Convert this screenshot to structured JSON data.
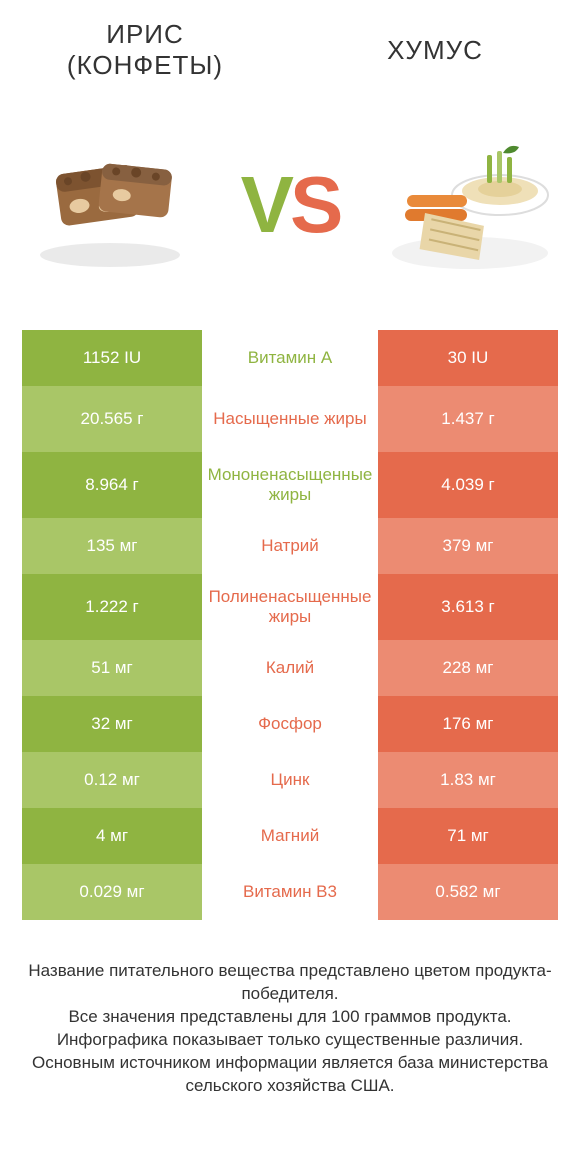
{
  "colors": {
    "green_dark": "#8fb441",
    "green_light": "#a9c667",
    "orange_dark": "#e56a4c",
    "orange_light": "#ec8b72",
    "mid_green_text": "#8fb441",
    "mid_orange_text": "#e56a4c",
    "title_text": "#333333",
    "footer_text": "#333333",
    "background": "#ffffff"
  },
  "header": {
    "left_line1": "ИРИС",
    "left_line2": "(КОНФЕТЫ)",
    "right": "ХУМУС"
  },
  "vs": {
    "v": "V",
    "s": "S"
  },
  "table": {
    "rows": [
      {
        "left": "1152 IU",
        "mid": "Витамин A",
        "right": "30 IU",
        "winner": "left",
        "tall": false
      },
      {
        "left": "20.565 г",
        "mid": "Насыщенные жиры",
        "right": "1.437 г",
        "winner": "right",
        "tall": true
      },
      {
        "left": "8.964 г",
        "mid": "Мононенасыщенные жиры",
        "right": "4.039 г",
        "winner": "left",
        "tall": true
      },
      {
        "left": "135 мг",
        "mid": "Натрий",
        "right": "379 мг",
        "winner": "right",
        "tall": false
      },
      {
        "left": "1.222 г",
        "mid": "Полиненасыщенные жиры",
        "right": "3.613 г",
        "winner": "right",
        "tall": true
      },
      {
        "left": "51 мг",
        "mid": "Калий",
        "right": "228 мг",
        "winner": "right",
        "tall": false
      },
      {
        "left": "32 мг",
        "mid": "Фосфор",
        "right": "176 мг",
        "winner": "right",
        "tall": false
      },
      {
        "left": "0.12 мг",
        "mid": "Цинк",
        "right": "1.83 мг",
        "winner": "right",
        "tall": false
      },
      {
        "left": "4 мг",
        "mid": "Магний",
        "right": "71 мг",
        "winner": "right",
        "tall": false
      },
      {
        "left": "0.029 мг",
        "mid": "Витамин B3",
        "right": "0.582 мг",
        "winner": "right",
        "tall": false
      }
    ]
  },
  "footer": {
    "l1": "Название питательного вещества представлено цветом продукта-победителя.",
    "l2": "Все значения представлены для 100 граммов продукта.",
    "l3": "Инфографика показывает только существенные различия.",
    "l4": "Основным источником информации является база министерства сельского хозяйства США."
  }
}
